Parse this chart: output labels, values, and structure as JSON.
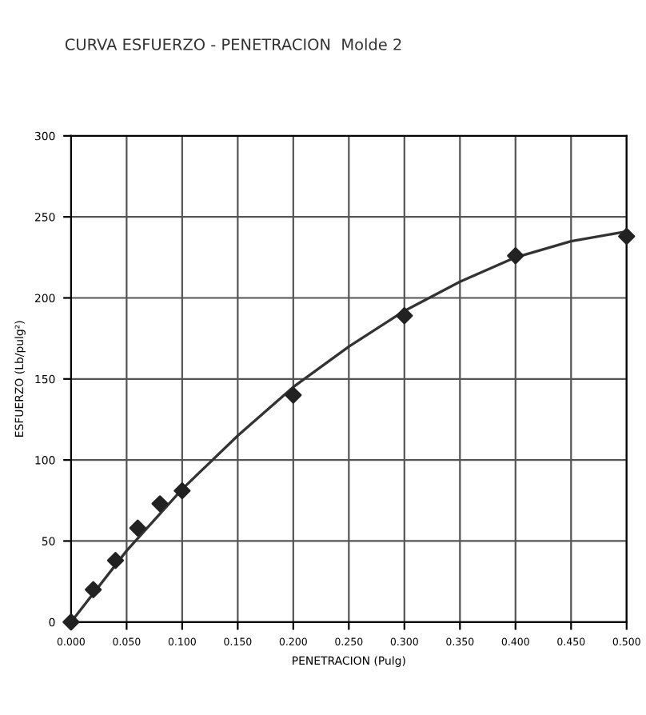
{
  "chart_data": {
    "type": "scatter",
    "title": "CURVA ESFUERZO - PENETRACION  Molde 2",
    "xlabel": "PENETRACION (Pulg)",
    "ylabel": "ESFUERZO (Lb/pulg²)",
    "series": [
      {
        "color": "#222222",
        "marker": "diamond",
        "x": [
          0,
          0.02,
          0.04,
          0.06,
          0.08,
          0.1,
          0.2,
          0.3,
          0.4,
          0.5
        ],
        "values": [
          0,
          20,
          38,
          58,
          73,
          81,
          140,
          189,
          226,
          238
        ]
      },
      {
        "type": "line",
        "color": "#333333",
        "x": [
          0,
          0.05,
          0.1,
          0.15,
          0.2,
          0.25,
          0.3,
          0.35,
          0.4,
          0.45,
          0.5
        ],
        "values": [
          0,
          44,
          82,
          115,
          145,
          170,
          192,
          210,
          225,
          235,
          241
        ]
      }
    ],
    "xlim": [
      0,
      0.5
    ],
    "xticks": [
      {
        "value": 0,
        "label": "0.000"
      },
      {
        "value": 0.05,
        "label": "0.050"
      },
      {
        "value": 0.1,
        "label": "0.100"
      },
      {
        "value": 0.15,
        "label": "0.150"
      },
      {
        "value": 0.2,
        "label": "0.200"
      },
      {
        "value": 0.25,
        "label": "0.250"
      },
      {
        "value": 0.3,
        "label": "0.300"
      },
      {
        "value": 0.35,
        "label": "0.350"
      },
      {
        "value": 0.4,
        "label": "0.400"
      },
      {
        "value": 0.45,
        "label": "0.450"
      },
      {
        "value": 0.5,
        "label": "0.500"
      }
    ],
    "ylim": [
      0,
      300
    ],
    "yticks": [
      0,
      50,
      100,
      150,
      200,
      250,
      300
    ],
    "grid": true,
    "line_style": "solid"
  }
}
